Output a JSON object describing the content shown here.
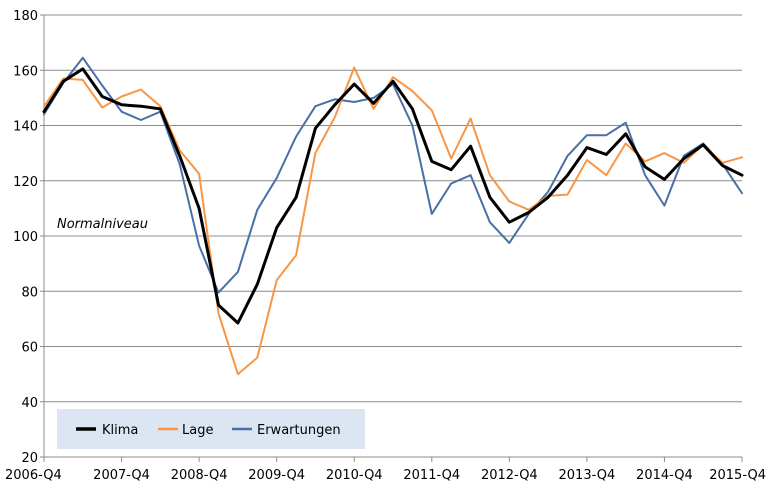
{
  "chart_data": {
    "type": "line",
    "ylim": [
      20,
      180
    ],
    "y_ticks": [
      "20",
      "40",
      "60",
      "80",
      "100",
      "120",
      "140",
      "160",
      "180"
    ],
    "x_tick_labels": [
      "2006-Q4",
      "2007-Q4",
      "2008-Q4",
      "2009-Q4",
      "2010-Q4",
      "2011-Q4",
      "2012-Q4",
      "2013-Q4",
      "2014-Q4",
      "2015-Q4"
    ],
    "annotation": "Normalniveau",
    "grid": true,
    "legend_position": "bottom-left",
    "series": [
      {
        "name": "Klima",
        "color": "#000000",
        "values": [
          145,
          156,
          160.5,
          150.5,
          147.5,
          147,
          146,
          129,
          110,
          75,
          68.5,
          82.5,
          103,
          114,
          139,
          147.5,
          155,
          148,
          156,
          146,
          127,
          124,
          132.5,
          114,
          105,
          108.5,
          114,
          122,
          132,
          129.5,
          137,
          125,
          120.5,
          128,
          133,
          125.5,
          122
        ]
      },
      {
        "name": "Lage",
        "color": "#F79646",
        "values": [
          147,
          157,
          156.5,
          146.5,
          150.5,
          153,
          147,
          131,
          122.5,
          72,
          50,
          56,
          84,
          93,
          130,
          143,
          161,
          146,
          157.5,
          152.5,
          145.5,
          128,
          142.5,
          122,
          112.5,
          109.5,
          114.5,
          115,
          127.5,
          122,
          133.5,
          127,
          130,
          126.5,
          133,
          126.5,
          128.5
        ]
      },
      {
        "name": "Erwartungen",
        "color": "#4A6FA5",
        "values": [
          144,
          155.5,
          164.5,
          154.5,
          145,
          142,
          145,
          126,
          96.5,
          79.5,
          87,
          109.5,
          121,
          136,
          147,
          149.5,
          148.5,
          150,
          155,
          140,
          108,
          119,
          122,
          105,
          97.5,
          108,
          116,
          129,
          136.5,
          136.5,
          141,
          122,
          111,
          129,
          133.5,
          126,
          115.5
        ]
      }
    ]
  }
}
